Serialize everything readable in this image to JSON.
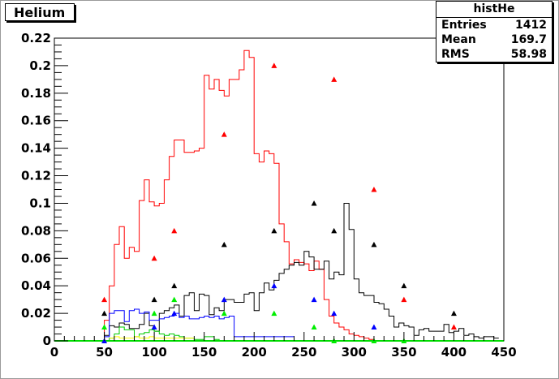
{
  "title": "Helium",
  "stats": {
    "name": "histHe",
    "rows": [
      {
        "label": "Entries",
        "value": "1412"
      },
      {
        "label": "Mean",
        "value": "169.7"
      },
      {
        "label": "RMS",
        "value": "58.98"
      }
    ]
  },
  "chart_data": {
    "type": "histogram",
    "title": "Helium",
    "xlim": [
      0,
      450
    ],
    "ylim": [
      0,
      0.22
    ],
    "x_ticks": [
      "0",
      "50",
      "100",
      "150",
      "200",
      "250",
      "300",
      "350",
      "400",
      "450"
    ],
    "x_tick_values": [
      0,
      50,
      100,
      150,
      200,
      250,
      300,
      350,
      400,
      450
    ],
    "y_ticks": [
      "0",
      "0.02",
      "0.04",
      "0.06",
      "0.08",
      "0.1",
      "0.12",
      "0.14",
      "0.16",
      "0.18",
      "0.2",
      "0.22"
    ],
    "y_tick_values": [
      0,
      0.02,
      0.04,
      0.06,
      0.08,
      0.1,
      0.12,
      0.14,
      0.16,
      0.18,
      0.2,
      0.22
    ],
    "grid": false,
    "histograms": [
      {
        "color": "#ff0000",
        "edges": [
          45,
          50,
          55,
          60,
          65,
          70,
          75,
          80,
          85,
          90,
          95,
          100,
          105,
          110,
          115,
          120,
          125,
          130,
          135,
          140,
          145,
          150,
          155,
          160,
          165,
          170,
          175,
          180,
          185,
          190,
          195,
          200,
          205,
          210,
          215,
          220,
          225,
          230,
          235,
          240,
          245,
          250,
          255,
          260,
          265,
          270,
          275,
          280,
          285,
          290,
          295,
          300,
          305,
          310,
          315,
          320,
          325,
          330,
          335,
          340,
          345,
          350,
          355,
          360,
          365,
          370
        ],
        "values": [
          0.0,
          0.015,
          0.04,
          0.07,
          0.083,
          0.06,
          0.068,
          0.065,
          0.102,
          0.117,
          0.101,
          0.098,
          0.1,
          0.117,
          0.134,
          0.146,
          0.146,
          0.137,
          0.137,
          0.138,
          0.14,
          0.193,
          0.183,
          0.19,
          0.182,
          0.178,
          0.19,
          0.19,
          0.197,
          0.211,
          0.206,
          0.136,
          0.13,
          0.138,
          0.136,
          0.129,
          0.085,
          0.072,
          0.056,
          0.059,
          0.057,
          0.056,
          0.051,
          0.058,
          0.052,
          0.03,
          0.018,
          0.013,
          0.01,
          0.008,
          0.005,
          0.004,
          0.003,
          0.002,
          0.001,
          0.0,
          0.0,
          0.0,
          0.0,
          0.0,
          0.0,
          0.0,
          0.0,
          0.0,
          0.0
        ]
      },
      {
        "color": "#000000",
        "edges": [
          45,
          50,
          55,
          60,
          65,
          70,
          75,
          80,
          85,
          90,
          95,
          100,
          105,
          110,
          115,
          120,
          125,
          130,
          135,
          140,
          145,
          150,
          155,
          160,
          165,
          170,
          175,
          180,
          185,
          190,
          195,
          200,
          205,
          210,
          215,
          220,
          225,
          230,
          235,
          240,
          245,
          250,
          255,
          260,
          265,
          270,
          275,
          280,
          285,
          290,
          295,
          300,
          305,
          310,
          315,
          320,
          325,
          330,
          335,
          340,
          345,
          350,
          355,
          360,
          365,
          370,
          375,
          380,
          385,
          390,
          395,
          400,
          405,
          410,
          415,
          420,
          425,
          430,
          435,
          440,
          445
        ],
        "values": [
          0.0,
          0.004,
          0.011,
          0.01,
          0.013,
          0.012,
          0.009,
          0.009,
          0.012,
          0.02,
          0.011,
          0.007,
          0.02,
          0.022,
          0.024,
          0.026,
          0.018,
          0.033,
          0.035,
          0.022,
          0.034,
          0.033,
          0.019,
          0.024,
          0.022,
          0.03,
          0.03,
          0.028,
          0.028,
          0.034,
          0.035,
          0.022,
          0.035,
          0.042,
          0.037,
          0.044,
          0.049,
          0.052,
          0.055,
          0.057,
          0.055,
          0.065,
          0.061,
          0.052,
          0.052,
          0.058,
          0.045,
          0.05,
          0.048,
          0.1,
          0.081,
          0.045,
          0.035,
          0.033,
          0.033,
          0.028,
          0.027,
          0.023,
          0.018,
          0.01,
          0.013,
          0.011,
          0.01,
          0.004,
          0.008,
          0.009,
          0.007,
          0.007,
          0.007,
          0.012,
          0.006,
          0.007,
          0.009,
          0.004,
          0.005,
          0.003,
          0.002,
          0.003,
          0.003,
          0.002
        ]
      },
      {
        "color": "#0000ff",
        "edges": [
          45,
          50,
          55,
          60,
          65,
          70,
          75,
          80,
          85,
          90,
          95,
          100,
          105,
          110,
          115,
          120,
          125,
          130,
          135,
          140,
          145,
          150,
          155,
          160,
          165,
          170,
          175,
          180,
          185,
          190,
          195,
          200,
          205,
          210,
          215,
          220,
          225,
          230,
          235,
          240
        ],
        "values": [
          0.0,
          0.003,
          0.02,
          0.022,
          0.022,
          0.014,
          0.022,
          0.023,
          0.02,
          0.021,
          0.015,
          0.015,
          0.016,
          0.017,
          0.018,
          0.02,
          0.017,
          0.018,
          0.016,
          0.016,
          0.017,
          0.018,
          0.017,
          0.018,
          0.016,
          0.017,
          0.018,
          0.003,
          0.003,
          0.003,
          0.003,
          0.003,
          0.003,
          0.003,
          0.003,
          0.003,
          0.003,
          0.003,
          0.003
        ]
      },
      {
        "color": "#00cc00",
        "edges": [
          45,
          50,
          55,
          60,
          65,
          70,
          75,
          80,
          85,
          90,
          95,
          100,
          105,
          110,
          115,
          120,
          125,
          130,
          135,
          140,
          145,
          150,
          155,
          160,
          165,
          170
        ],
        "values": [
          0.0,
          0.0,
          0.002,
          0.005,
          0.01,
          0.008,
          0.008,
          0.003,
          0.005,
          0.006,
          0.008,
          0.007,
          0.005,
          0.004,
          0.005,
          0.004,
          0.003,
          0.002,
          0.002,
          0.001,
          0.001,
          0.003,
          0.003,
          0.001,
          0.0
        ]
      },
      {
        "color": "#ffff00",
        "edges": [
          55,
          60,
          65,
          70,
          75,
          80,
          85,
          90,
          95,
          100,
          105,
          110,
          115,
          120,
          125,
          130,
          135,
          140
        ],
        "values": [
          0.002,
          0.003,
          0.002,
          0.002,
          0.002,
          0.003,
          0.002,
          0.002,
          0.003,
          0.002,
          0.002,
          0.002,
          0.002,
          0.002,
          0.002,
          0.002,
          0.002
        ]
      }
    ],
    "marker_series": [
      {
        "color": "#ff0000",
        "points": [
          [
            50,
            0.03
          ],
          [
            100,
            0.06
          ],
          [
            120,
            0.08
          ],
          [
            170,
            0.15
          ],
          [
            220,
            0.2
          ],
          [
            280,
            0.19
          ],
          [
            320,
            0.11
          ],
          [
            350,
            0.03
          ],
          [
            400,
            0.01
          ]
        ]
      },
      {
        "color": "#000000",
        "points": [
          [
            50,
            0.02
          ],
          [
            100,
            0.03
          ],
          [
            120,
            0.04
          ],
          [
            170,
            0.07
          ],
          [
            220,
            0.08
          ],
          [
            260,
            0.1
          ],
          [
            280,
            0.08
          ],
          [
            320,
            0.07
          ],
          [
            350,
            0.04
          ],
          [
            400,
            0.02
          ]
        ]
      },
      {
        "color": "#0000ff",
        "points": [
          [
            50,
            0.0
          ],
          [
            100,
            0.01
          ],
          [
            120,
            0.02
          ],
          [
            170,
            0.03
          ],
          [
            220,
            0.04
          ],
          [
            260,
            0.03
          ],
          [
            280,
            0.02
          ],
          [
            320,
            0.01
          ]
        ]
      },
      {
        "color": "#00ee00",
        "points": [
          [
            50,
            0.01
          ],
          [
            100,
            0.02
          ],
          [
            120,
            0.03
          ],
          [
            170,
            0.02
          ],
          [
            220,
            0.02
          ],
          [
            260,
            0.01
          ],
          [
            280,
            0.0
          ],
          [
            320,
            0.0
          ],
          [
            350,
            0.0
          ]
        ]
      }
    ]
  }
}
